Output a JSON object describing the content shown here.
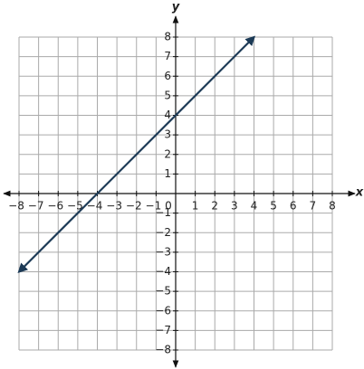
{
  "chart_data": {
    "type": "line",
    "x_label": "x",
    "y_label": "y",
    "x": [
      -8,
      4
    ],
    "series": [
      {
        "color": "#1c3a56",
        "values": [
          -4,
          8
        ]
      }
    ],
    "xlim": [
      -8,
      8
    ],
    "ylim": [
      -8,
      8
    ],
    "xticks": [
      {
        "value": -8,
        "label": "−8"
      },
      {
        "value": -7,
        "label": "−7"
      },
      {
        "value": -6,
        "label": "−6"
      },
      {
        "value": -5,
        "label": "−5"
      },
      {
        "value": -4,
        "label": "−4"
      },
      {
        "value": -3,
        "label": "−3"
      },
      {
        "value": -2,
        "label": "−2"
      },
      {
        "value": -1,
        "label": "−1"
      },
      0,
      1,
      2,
      3,
      4,
      5,
      6,
      7,
      8
    ],
    "yticks": [
      {
        "value": -8,
        "label": "−8"
      },
      {
        "value": -7,
        "label": "−7"
      },
      {
        "value": -6,
        "label": "−6"
      },
      {
        "value": -5,
        "label": "−5"
      },
      {
        "value": -4,
        "label": "−4"
      },
      {
        "value": -3,
        "label": "−3"
      },
      {
        "value": -2,
        "label": "−2"
      },
      {
        "value": -1,
        "label": "−1"
      },
      1,
      2,
      3,
      4,
      5,
      6,
      7,
      8
    ],
    "grid": true
  }
}
